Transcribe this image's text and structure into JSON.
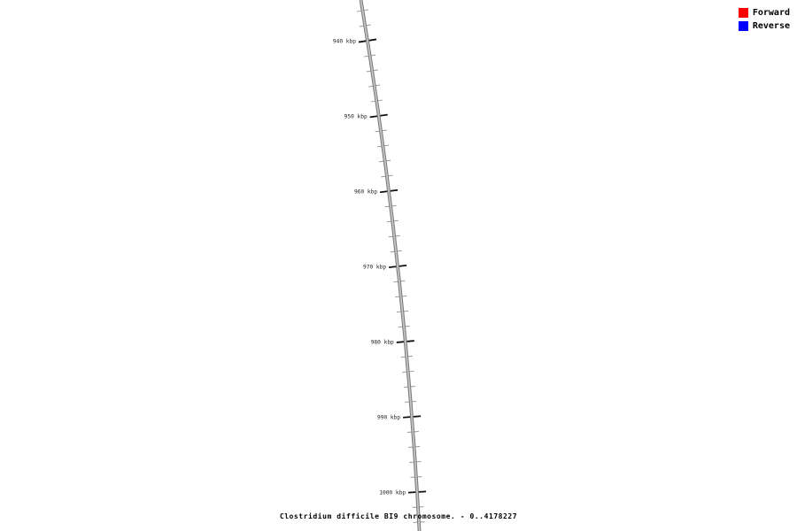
{
  "title": {
    "text": "Clostridium difficile BI9 chromosome. - 0..4178227"
  },
  "legend": {
    "items": [
      {
        "label": "Forward",
        "color": "#ff0000"
      },
      {
        "label": "Reverse",
        "color": "#0000ff"
      }
    ]
  },
  "chart_data": {
    "type": "line",
    "description": "Zoomed linear segment of a circular genome map: gray chromosome backbone ruler with kbp tick marks, no gene features drawn in the visible 940-1000 kbp window",
    "sequence_name": "Clostridium difficile BI9 chromosome",
    "sequence_range": [
      0,
      4178227
    ],
    "title": "Clostridium difficile BI9 chromosome. - 0..4178227",
    "legend_entries": [
      "Forward",
      "Reverse"
    ],
    "legend_colors": [
      "#ff0000",
      "#0000ff"
    ],
    "ruler": {
      "unit": "kbp",
      "major_tick_values_kbp": [
        940,
        950,
        960,
        970,
        980,
        990,
        1000
      ],
      "major_tick_labels": [
        "940 kbp",
        "950 kbp",
        "960 kbp",
        "970 kbp",
        "980 kbp",
        "990 kbp",
        "1000 kbp"
      ],
      "minor_tick_interval_kbp": 2,
      "visible_minor_tick_range_kbp": [
        936,
        1004
      ]
    },
    "backbone_color": "#7b7b7b",
    "backbone_highlight_color": "#c6c6c6",
    "major_tick_color": "#111111",
    "minor_tick_color": "#999999",
    "tick_label_color": "#222222",
    "features": []
  }
}
